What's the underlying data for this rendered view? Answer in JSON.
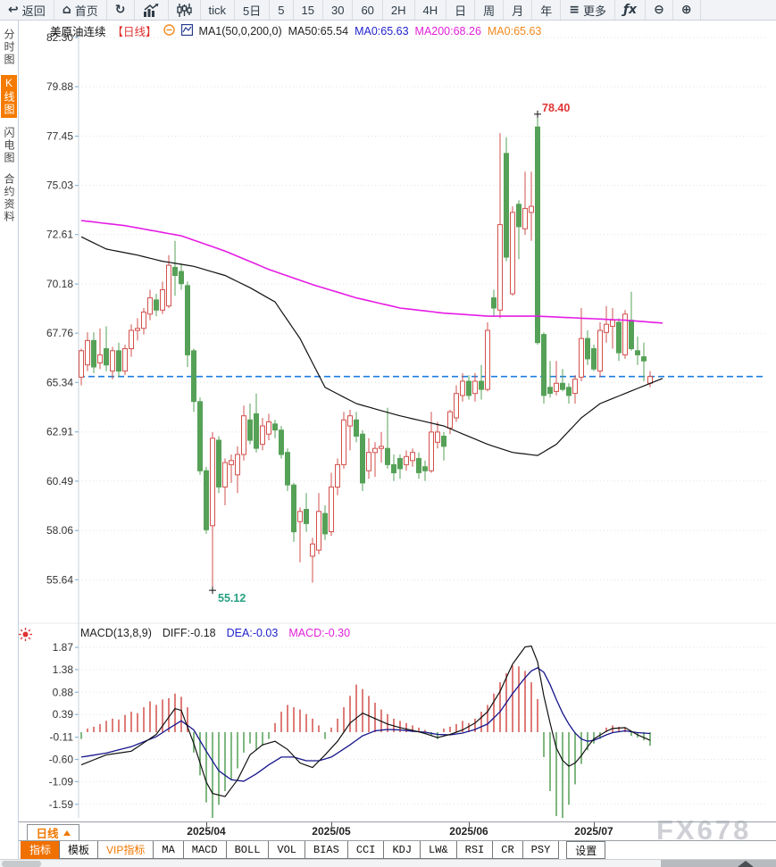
{
  "toolbar": {
    "items": [
      {
        "name": "back-button",
        "icon": "back-arrow-icon",
        "label": "返回"
      },
      {
        "name": "home-button",
        "icon": "home-icon",
        "label": "首页"
      },
      {
        "name": "refresh-button",
        "icon": "refresh-icon",
        "label": ""
      },
      {
        "name": "trend-chart-button",
        "icon": "bar-chart-icon",
        "label": ""
      },
      {
        "name": "candlestick-view-button",
        "icon": "candlestick-icon",
        "label": ""
      },
      {
        "name": "period-tick-button",
        "icon": "",
        "label": "tick"
      },
      {
        "name": "period-5day-button",
        "icon": "",
        "label": "5日"
      },
      {
        "name": "period-5min-button",
        "icon": "",
        "label": "5"
      },
      {
        "name": "period-15min-button",
        "icon": "",
        "label": "15"
      },
      {
        "name": "period-30min-button",
        "icon": "",
        "label": "30"
      },
      {
        "name": "period-60min-button",
        "icon": "",
        "label": "60"
      },
      {
        "name": "period-2h-button",
        "icon": "",
        "label": "2H"
      },
      {
        "name": "period-4h-button",
        "icon": "",
        "label": "4H"
      },
      {
        "name": "period-day-button",
        "icon": "",
        "label": "日"
      },
      {
        "name": "period-week-button",
        "icon": "",
        "label": "周"
      },
      {
        "name": "period-month-button",
        "icon": "",
        "label": "月"
      },
      {
        "name": "period-year-button",
        "icon": "",
        "label": "年"
      },
      {
        "name": "more-button",
        "icon": "menu-icon",
        "label": "更多"
      },
      {
        "name": "formula-button",
        "icon": "fx-icon",
        "label": ""
      },
      {
        "name": "zoom-out-button",
        "icon": "zoom-out-icon",
        "label": ""
      },
      {
        "name": "zoom-in-button",
        "icon": "zoom-in-icon",
        "label": ""
      }
    ]
  },
  "sidebar": {
    "items": [
      {
        "label": "分时图",
        "active": false
      },
      {
        "label": "K线图",
        "active": true
      },
      {
        "label": "闪电图",
        "active": false
      },
      {
        "label": "合约资料",
        "active": false
      }
    ]
  },
  "price_header": {
    "symbol": "美原油连续",
    "period_tag": "【日线】",
    "ma_settings": "MA1(50,0,200,0)",
    "ma50": "MA50:65.54",
    "ma0_blue": "MA0:65.63",
    "ma200": "MA200:68.26",
    "ma0_orange": "MA0:65.63"
  },
  "macd_header": {
    "title": "MACD(13,8,9)",
    "diff": "DIFF:-0.18",
    "dea": "DEA:-0.03",
    "macd": "MACD:-0.30"
  },
  "bottom": {
    "period_selector": "日线",
    "tabs": [
      {
        "label": "指标",
        "style": "active"
      },
      {
        "label": "模板",
        "style": ""
      },
      {
        "label": "VIP指标",
        "style": "vip"
      },
      {
        "label": "MA",
        "style": "mono"
      },
      {
        "label": "MACD",
        "style": "mono"
      },
      {
        "label": "BOLL",
        "style": "mono"
      },
      {
        "label": "VOL",
        "style": "mono"
      },
      {
        "label": "BIAS",
        "style": "mono"
      },
      {
        "label": "CCI",
        "style": "mono"
      },
      {
        "label": "KDJ",
        "style": "mono"
      },
      {
        "label": "LW&",
        "style": "mono"
      },
      {
        "label": "RSI",
        "style": "mono"
      },
      {
        "label": "CR",
        "style": "mono"
      },
      {
        "label": "PSY",
        "style": "mono"
      },
      {
        "label": "设置",
        "style": "settings"
      }
    ]
  },
  "watermark": "FX678",
  "colors": {
    "up": "#d2504c",
    "down": "#55a157",
    "ma50": "#111111",
    "ma200": "#e51ce5",
    "diff": "#111111",
    "dea": "#16168c",
    "price_line": "#1b7ce0",
    "high_label": "#e03535",
    "low_label": "#26a182",
    "grid": "#dfe2e7",
    "axis": "#c8d0da",
    "tick": "#86b6dc",
    "accent_orange": "#f57a00"
  },
  "chart_data": {
    "type": "candlestick+macd",
    "title": "美原油连续 日线 (US Crude Oil Continuous, Daily)",
    "price_axis_labels": [
      "82.30",
      "79.88",
      "77.45",
      "75.03",
      "72.61",
      "70.18",
      "67.76",
      "65.34",
      "62.91",
      "60.49",
      "58.06",
      "55.64"
    ],
    "macd_axis_labels": [
      "1.87",
      "1.38",
      "0.88",
      "0.39",
      "-0.11",
      "-0.60",
      "-1.09",
      "-1.59"
    ],
    "x_axis": {
      "month_labels": [
        "2025/04",
        "2025/05",
        "2025/06",
        "2025/07"
      ],
      "month_tick_candle_index": [
        20,
        40,
        62,
        82
      ]
    },
    "last_price": 65.63,
    "high_label": {
      "value": "78.40",
      "candle_index": 73,
      "price": 78.4
    },
    "low_label": {
      "value": "55.12",
      "candle_index": 21,
      "price": 55.12
    },
    "candles": [
      [
        65.6,
        67.0,
        65.2,
        66.9
      ],
      [
        66.2,
        67.8,
        65.9,
        67.4
      ],
      [
        67.4,
        67.8,
        65.8,
        66.1
      ],
      [
        66.3,
        68.0,
        66.0,
        66.7
      ],
      [
        67.0,
        68.1,
        65.9,
        66.2
      ],
      [
        65.9,
        67.1,
        65.5,
        66.9
      ],
      [
        66.9,
        67.3,
        65.6,
        65.9
      ],
      [
        65.9,
        67.2,
        65.7,
        67.0
      ],
      [
        67.0,
        68.2,
        66.6,
        67.9
      ],
      [
        67.9,
        68.5,
        67.4,
        68.0
      ],
      [
        68.0,
        69.0,
        67.7,
        68.8
      ],
      [
        68.7,
        69.9,
        68.4,
        69.5
      ],
      [
        69.4,
        69.7,
        68.6,
        68.9
      ],
      [
        68.9,
        70.3,
        68.7,
        69.9
      ],
      [
        69.1,
        71.6,
        69.0,
        71.1
      ],
      [
        71.0,
        72.3,
        69.6,
        70.6
      ],
      [
        70.8,
        71.2,
        69.9,
        70.2
      ],
      [
        70.1,
        70.3,
        66.1,
        66.7
      ],
      [
        66.9,
        67.0,
        63.9,
        64.4
      ],
      [
        64.4,
        64.6,
        60.8,
        61.0
      ],
      [
        61.0,
        61.2,
        57.9,
        58.1
      ],
      [
        58.3,
        62.9,
        55.12,
        62.6
      ],
      [
        62.5,
        62.7,
        59.9,
        60.2
      ],
      [
        60.2,
        61.6,
        59.3,
        61.4
      ],
      [
        61.3,
        61.8,
        60.4,
        61.5
      ],
      [
        60.8,
        62.2,
        59.9,
        61.8
      ],
      [
        61.8,
        64.2,
        61.5,
        63.7
      ],
      [
        63.5,
        64.3,
        62.3,
        62.5
      ],
      [
        63.8,
        64.8,
        61.9,
        62.1
      ],
      [
        62.3,
        63.6,
        62.0,
        63.2
      ],
      [
        62.8,
        63.8,
        62.5,
        63.4
      ],
      [
        63.3,
        63.5,
        62.6,
        63.0
      ],
      [
        63.0,
        63.2,
        61.6,
        61.8
      ],
      [
        61.9,
        62.1,
        60.0,
        60.3
      ],
      [
        60.3,
        60.4,
        57.5,
        58.0
      ],
      [
        58.5,
        59.2,
        56.5,
        59.0
      ],
      [
        59.1,
        59.9,
        58.0,
        58.4
      ],
      [
        56.8,
        57.7,
        55.5,
        57.4
      ],
      [
        57.1,
        59.9,
        56.9,
        59.0
      ],
      [
        58.9,
        59.3,
        57.6,
        57.9
      ],
      [
        58.0,
        60.9,
        57.8,
        60.2
      ],
      [
        60.2,
        61.6,
        59.8,
        61.3
      ],
      [
        61.3,
        63.9,
        61.1,
        63.5
      ],
      [
        63.2,
        64.0,
        62.0,
        63.7
      ],
      [
        63.5,
        63.9,
        62.4,
        62.7
      ],
      [
        62.8,
        63.0,
        60.0,
        60.4
      ],
      [
        61.0,
        62.6,
        60.6,
        61.9
      ],
      [
        61.9,
        62.4,
        60.7,
        62.1
      ],
      [
        62.1,
        62.9,
        61.4,
        62.2
      ],
      [
        62.1,
        64.1,
        61.1,
        61.3
      ],
      [
        61.3,
        61.8,
        60.5,
        60.9
      ],
      [
        61.6,
        61.8,
        60.6,
        61.1
      ],
      [
        61.3,
        62.0,
        61.0,
        61.7
      ],
      [
        61.5,
        62.1,
        61.2,
        61.9
      ],
      [
        61.6,
        61.9,
        60.6,
        60.9
      ],
      [
        61.2,
        61.5,
        60.5,
        61.0
      ],
      [
        61.0,
        63.9,
        60.9,
        62.9
      ],
      [
        62.4,
        63.4,
        62.1,
        62.9
      ],
      [
        62.7,
        62.9,
        61.5,
        62.2
      ],
      [
        63.1,
        64.0,
        62.8,
        63.9
      ],
      [
        63.6,
        65.2,
        63.4,
        64.8
      ],
      [
        64.7,
        65.8,
        64.4,
        65.4
      ],
      [
        65.4,
        65.7,
        64.5,
        64.7
      ],
      [
        64.8,
        65.8,
        64.4,
        65.4
      ],
      [
        65.4,
        66.2,
        64.5,
        65.0
      ],
      [
        65.0,
        68.3,
        64.9,
        67.9
      ],
      [
        69.5,
        69.9,
        68.6,
        69.0
      ],
      [
        68.9,
        77.6,
        68.5,
        73.1
      ],
      [
        76.6,
        77.4,
        71.3,
        71.5
      ],
      [
        69.7,
        74.0,
        69.6,
        73.7
      ],
      [
        74.1,
        74.3,
        71.4,
        73.0
      ],
      [
        72.9,
        75.7,
        72.6,
        73.9
      ],
      [
        73.7,
        75.7,
        72.3,
        74.0
      ],
      [
        77.9,
        78.4,
        67.2,
        67.3
      ],
      [
        67.7,
        67.8,
        64.3,
        64.7
      ],
      [
        65.1,
        66.4,
        64.6,
        64.8
      ],
      [
        64.9,
        66.4,
        64.7,
        65.3
      ],
      [
        65.3,
        66.0,
        64.9,
        65.0
      ],
      [
        65.1,
        65.3,
        64.3,
        64.7
      ],
      [
        64.8,
        65.7,
        64.3,
        65.5
      ],
      [
        65.6,
        69.0,
        65.4,
        67.5
      ],
      [
        67.5,
        67.9,
        66.2,
        66.5
      ],
      [
        67.0,
        67.2,
        65.9,
        66.0
      ],
      [
        65.9,
        68.3,
        65.6,
        67.9
      ],
      [
        67.8,
        69.1,
        67.3,
        68.2
      ],
      [
        68.1,
        69.0,
        67.0,
        68.4
      ],
      [
        68.3,
        68.5,
        66.4,
        66.8
      ],
      [
        66.7,
        68.9,
        66.5,
        68.7
      ],
      [
        68.4,
        69.8,
        66.9,
        67.0
      ],
      [
        66.9,
        67.6,
        66.2,
        66.7
      ],
      [
        66.6,
        67.3,
        65.4,
        66.4
      ],
      [
        65.3,
        65.9,
        65.1,
        65.63
      ]
    ],
    "ma50_anchors": [
      [
        0,
        72.5
      ],
      [
        4,
        71.9
      ],
      [
        9,
        71.6
      ],
      [
        13,
        71.3
      ],
      [
        18,
        71.05
      ],
      [
        23,
        70.6
      ],
      [
        27,
        70.0
      ],
      [
        31,
        69.3
      ],
      [
        35,
        67.5
      ],
      [
        39,
        65.1
      ],
      [
        44,
        64.3
      ],
      [
        51,
        63.7
      ],
      [
        58,
        63.2
      ],
      [
        65,
        62.3
      ],
      [
        69,
        61.9
      ],
      [
        73,
        61.75
      ],
      [
        76,
        62.3
      ],
      [
        80,
        63.6
      ],
      [
        83,
        64.3
      ],
      [
        87,
        64.8
      ],
      [
        93,
        65.54
      ]
    ],
    "ma200_anchors": [
      [
        0,
        73.3
      ],
      [
        7,
        73.05
      ],
      [
        16,
        72.55
      ],
      [
        23,
        71.8
      ],
      [
        30,
        70.9
      ],
      [
        37,
        70.15
      ],
      [
        44,
        69.5
      ],
      [
        51,
        69.0
      ],
      [
        58,
        68.75
      ],
      [
        65,
        68.6
      ],
      [
        73,
        68.6
      ],
      [
        80,
        68.5
      ],
      [
        87,
        68.4
      ],
      [
        93,
        68.26
      ]
    ],
    "macd": {
      "diff_anchors": [
        [
          0,
          -0.72
        ],
        [
          4,
          -0.5
        ],
        [
          8,
          -0.42
        ],
        [
          12,
          -0.05
        ],
        [
          15,
          0.52
        ],
        [
          16,
          0.48
        ],
        [
          18,
          -0.25
        ],
        [
          20,
          -1.1
        ],
        [
          21,
          -1.35
        ],
        [
          23,
          -1.42
        ],
        [
          25,
          -1.05
        ],
        [
          27,
          -0.5
        ],
        [
          29,
          -0.28
        ],
        [
          31,
          -0.2
        ],
        [
          33,
          -0.38
        ],
        [
          35,
          -0.68
        ],
        [
          37,
          -0.78
        ],
        [
          39,
          -0.5
        ],
        [
          41,
          -0.2
        ],
        [
          43,
          0.2
        ],
        [
          45,
          0.42
        ],
        [
          47,
          0.3
        ],
        [
          49,
          0.18
        ],
        [
          51,
          0.1
        ],
        [
          53,
          0.04
        ],
        [
          55,
          -0.03
        ],
        [
          57,
          -0.12
        ],
        [
          59,
          -0.05
        ],
        [
          61,
          0.05
        ],
        [
          63,
          0.2
        ],
        [
          65,
          0.45
        ],
        [
          67,
          0.9
        ],
        [
          69,
          1.5
        ],
        [
          71,
          1.88
        ],
        [
          72,
          1.9
        ],
        [
          73,
          1.55
        ],
        [
          74,
          0.8
        ],
        [
          75,
          0.2
        ],
        [
          76,
          -0.35
        ],
        [
          77,
          -0.62
        ],
        [
          78,
          -0.75
        ],
        [
          79,
          -0.68
        ],
        [
          80,
          -0.52
        ],
        [
          81,
          -0.32
        ],
        [
          82,
          -0.15
        ],
        [
          84,
          0.02
        ],
        [
          85,
          0.08
        ],
        [
          87,
          0.1
        ],
        [
          88,
          0.02
        ],
        [
          89,
          -0.06
        ],
        [
          90,
          -0.12
        ],
        [
          91,
          -0.18
        ]
      ],
      "dea_anchors": [
        [
          0,
          -0.55
        ],
        [
          4,
          -0.46
        ],
        [
          8,
          -0.32
        ],
        [
          12,
          -0.1
        ],
        [
          14,
          0.08
        ],
        [
          16,
          0.25
        ],
        [
          18,
          0.05
        ],
        [
          20,
          -0.42
        ],
        [
          22,
          -0.85
        ],
        [
          24,
          -1.05
        ],
        [
          26,
          -1.08
        ],
        [
          28,
          -0.92
        ],
        [
          30,
          -0.72
        ],
        [
          32,
          -0.55
        ],
        [
          34,
          -0.55
        ],
        [
          36,
          -0.63
        ],
        [
          38,
          -0.63
        ],
        [
          40,
          -0.55
        ],
        [
          43,
          -0.28
        ],
        [
          45,
          -0.08
        ],
        [
          47,
          0.03
        ],
        [
          49,
          0.06
        ],
        [
          51,
          0.05
        ],
        [
          53,
          0.02
        ],
        [
          55,
          0.0
        ],
        [
          57,
          -0.05
        ],
        [
          59,
          -0.06
        ],
        [
          61,
          -0.02
        ],
        [
          63,
          0.06
        ],
        [
          65,
          0.18
        ],
        [
          67,
          0.45
        ],
        [
          69,
          0.85
        ],
        [
          71,
          1.2
        ],
        [
          72,
          1.35
        ],
        [
          73,
          1.42
        ],
        [
          74,
          1.32
        ],
        [
          75,
          1.05
        ],
        [
          76,
          0.72
        ],
        [
          77,
          0.42
        ],
        [
          78,
          0.18
        ],
        [
          79,
          -0.02
        ],
        [
          80,
          -0.15
        ],
        [
          81,
          -0.2
        ],
        [
          82,
          -0.18
        ],
        [
          83,
          -0.12
        ],
        [
          84,
          -0.06
        ],
        [
          85,
          -0.01
        ],
        [
          86,
          0.01
        ],
        [
          87,
          0.03
        ],
        [
          89,
          -0.01
        ],
        [
          91,
          -0.03
        ]
      ],
      "bars": [
        -0.15,
        0.08,
        0.12,
        0.18,
        0.25,
        0.3,
        0.28,
        0.38,
        0.45,
        0.42,
        0.55,
        0.68,
        0.6,
        0.72,
        0.75,
        0.85,
        0.78,
        0.55,
        -0.45,
        -0.95,
        -1.55,
        -1.95,
        -1.6,
        -1.3,
        -1.05,
        -0.8,
        -0.45,
        -0.25,
        -0.4,
        -0.3,
        -0.15,
        0.2,
        0.45,
        0.6,
        0.55,
        0.5,
        0.4,
        0.3,
        0.15,
        -0.15,
        0.1,
        0.3,
        0.55,
        0.8,
        1.05,
        0.95,
        0.8,
        0.65,
        0.5,
        0.4,
        0.3,
        0.25,
        0.2,
        0.15,
        0.1,
        0.05,
        -0.08,
        -0.15,
        0.08,
        0.12,
        0.18,
        0.25,
        0.2,
        0.3,
        0.45,
        0.6,
        0.85,
        1.1,
        1.3,
        1.47,
        1.45,
        1.35,
        1.1,
        0.73,
        -0.55,
        -1.3,
        -1.85,
        -1.9,
        -1.6,
        -1.15,
        -0.7,
        -0.4,
        -0.25,
        -0.15,
        0.1,
        0.15,
        0.12,
        0.1,
        -0.08,
        -0.12,
        -0.18,
        -0.3
      ]
    }
  }
}
